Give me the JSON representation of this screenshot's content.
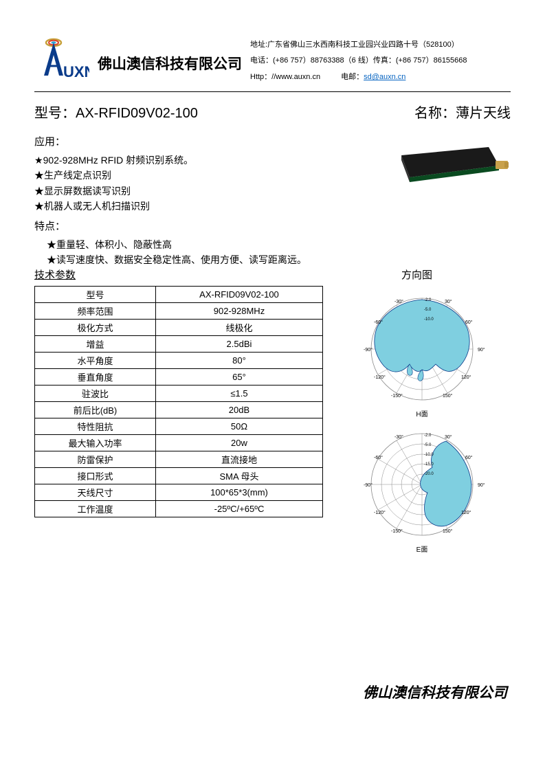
{
  "header": {
    "company": "佛山澳信科技有限公司",
    "address": "地址:广东省佛山三水西南科技工业园兴业四路十号（528100）",
    "phone": "电话：(+86 757）88763388（6 线）传真：(+86 757）86155668",
    "website": "Http：//www.auxn.cn",
    "email_label": "电邮：",
    "email": "sd@auxn.cn",
    "logo_text": "UXN",
    "logo_colors": {
      "outer": "#c7a03a",
      "mid": "#d94530",
      "inner": "#2aa5d8",
      "tower": "#0a3b8a"
    }
  },
  "title": {
    "model_label": "型号：",
    "model_value": "AX-RFID09V02-100",
    "name_label": "名称：",
    "name_value": "薄片天线"
  },
  "applications": {
    "heading": "应用：",
    "items": [
      "902-928MHz RFID 射频识别系统。",
      "生产线定点识别",
      "显示屏数据读写识别",
      "机器人或无人机扫描识别"
    ]
  },
  "features": {
    "heading": "特点：",
    "items": [
      "重量轻、体积小、隐蔽性高",
      "读写速度快、数据安全稳定性高、使用方便、读写距离远。"
    ]
  },
  "spec_section": {
    "table_heading": "技术参数",
    "chart_heading": "方向图",
    "rows": [
      [
        "型号",
        "AX-RFID09V02-100"
      ],
      [
        "频率范围",
        "902-928MHz"
      ],
      [
        "极化方式",
        "线极化"
      ],
      [
        "增益",
        "2.5dBi"
      ],
      [
        "水平角度",
        "80°"
      ],
      [
        "垂直角度",
        "65°"
      ],
      [
        "驻波比",
        "≤1.5"
      ],
      [
        "前后比(dB)",
        "20dB"
      ],
      [
        "特性阻抗",
        "50Ω"
      ],
      [
        "最大输入功率",
        "20w"
      ],
      [
        "防雷保护",
        "直流接地"
      ],
      [
        "接口形式",
        "SMA 母头"
      ],
      [
        "天线尺寸",
        "100*65*3(mm)"
      ],
      [
        "工作温度",
        "-25ºC/+65ºC"
      ]
    ]
  },
  "polar_charts": {
    "fill_color": "#7fcfe0",
    "grid_color": "#888888",
    "label_h": "H面",
    "label_e": "E面",
    "angle_labels": [
      "-90°",
      "-60°",
      "-30°",
      "30°",
      "60°",
      "90°",
      "120°",
      "150°",
      "-120°",
      "-150°"
    ],
    "db_labels": [
      "-2.0",
      "-5.0",
      "-10.0",
      "-15.0",
      "-20.0"
    ]
  },
  "product_image": {
    "body_color": "#1a1a1a",
    "connector_color": "#c9a14a"
  },
  "footer": "佛山澳信科技有限公司"
}
